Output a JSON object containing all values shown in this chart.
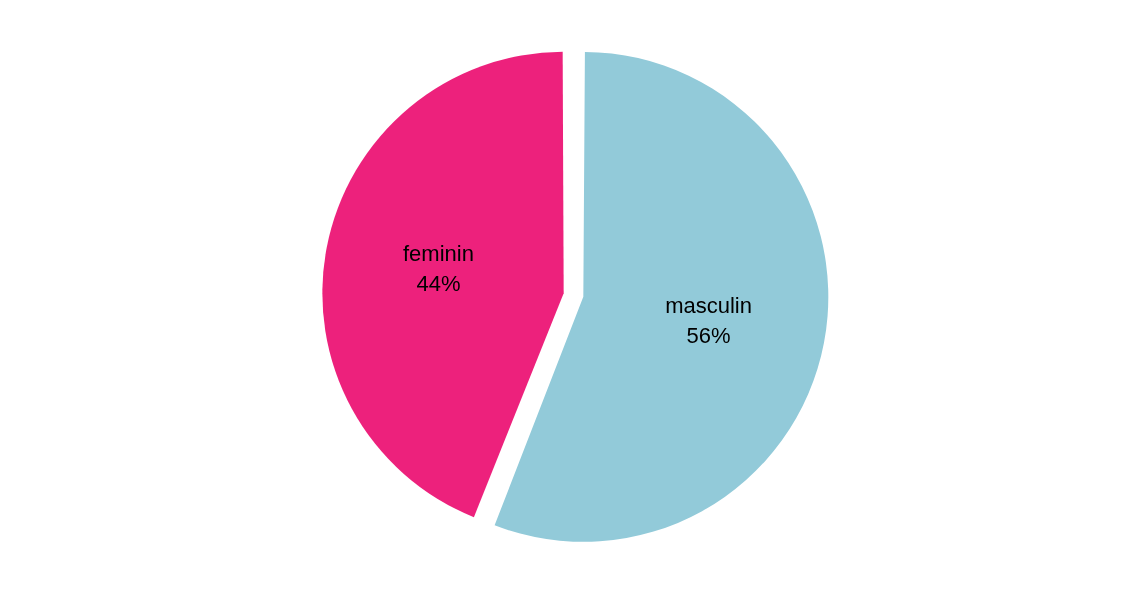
{
  "chart_data": {
    "type": "pie",
    "categories": [
      "masculin",
      "feminin"
    ],
    "values": [
      56,
      44
    ],
    "colors": [
      "#92cad9",
      "#ed217c"
    ],
    "value_labels": [
      "56%",
      "44%"
    ],
    "legend": false
  }
}
